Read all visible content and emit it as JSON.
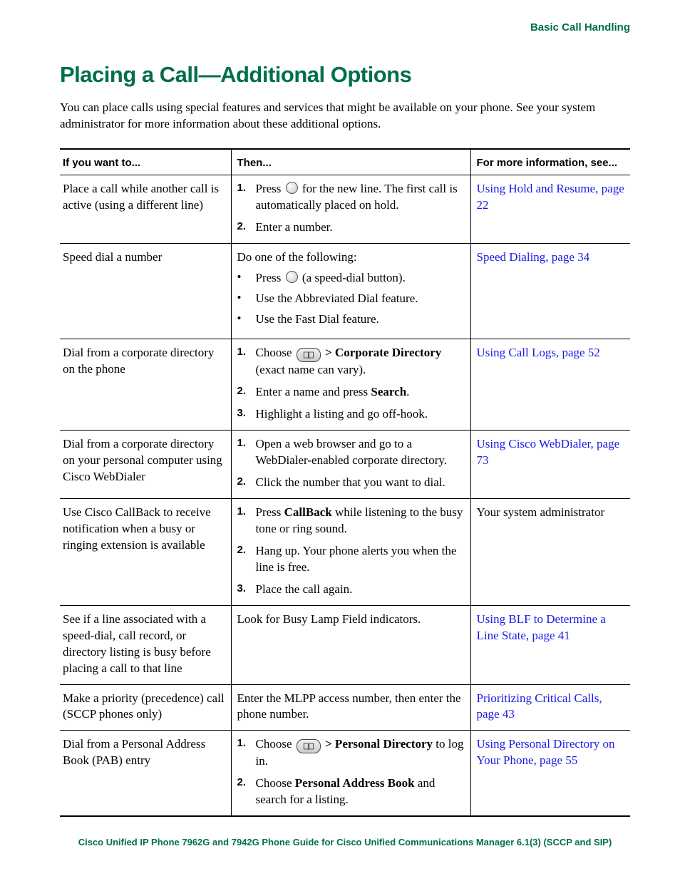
{
  "colors": {
    "accent": "#006f4a",
    "link": "#1a1ae6",
    "text": "#000000",
    "background": "#ffffff",
    "rule": "#000000"
  },
  "typography": {
    "body_font": "Times New Roman",
    "heading_font": "Arial",
    "body_size_pt": 12,
    "h1_size_pt": 22,
    "th_size_pt": 11
  },
  "header": {
    "section": "Basic Call Handling"
  },
  "title": "Placing a Call—Additional Options",
  "intro": "You can place calls using special features and services that might be available on your phone. See your system administrator for more information about these additional options.",
  "table": {
    "type": "table",
    "columns": [
      "If you want to...",
      "Then...",
      "For more information, see..."
    ],
    "col_widths_pct": [
      30,
      42,
      28
    ],
    "rows": [
      {
        "want": "Place a call while another call is active (using a different line)",
        "then_lead": "",
        "then_steps": [
          {
            "pre": "Press ",
            "icon": "line-button",
            "post": " for the new line. The first call is automatically placed on hold."
          },
          {
            "text": "Enter a number."
          }
        ],
        "more_link": "Using Hold and Resume, page 22"
      },
      {
        "want": "Speed dial a number",
        "then_lead": "Do one of the following:",
        "then_bullets": [
          {
            "pre": "Press ",
            "icon": "line-button",
            "post": " (a speed-dial button)."
          },
          {
            "text": "Use the Abbreviated Dial feature."
          },
          {
            "text": "Use the Fast Dial feature."
          }
        ],
        "more_link": "Speed Dialing, page 34"
      },
      {
        "want": "Dial from a corporate directory on the phone",
        "then_steps": [
          {
            "pre": "Choose ",
            "icon": "dir-button",
            "bold_post": " > Corporate Directory",
            "post": " (exact name can vary)."
          },
          {
            "pre": "Enter a name and press ",
            "bold": "Search",
            "post": "."
          },
          {
            "text": "Highlight a listing and go off-hook."
          }
        ],
        "more_link": "Using Call Logs, page 52"
      },
      {
        "want": "Dial from a corporate directory on your personal computer using Cisco WebDialer",
        "then_steps": [
          {
            "text": "Open a web browser and go to a WebDialer-enabled corporate directory."
          },
          {
            "text": "Click the number that you want to dial."
          }
        ],
        "more_link": "Using Cisco WebDialer, page 73"
      },
      {
        "want": "Use Cisco CallBack to receive notification when a busy or ringing extension is available",
        "then_steps": [
          {
            "pre": "Press ",
            "bold": "CallBack",
            "post": " while listening to the busy tone or ring sound."
          },
          {
            "text": "Hang up. Your phone alerts you when the line is free."
          },
          {
            "text": "Place the call again."
          }
        ],
        "more_text": "Your system administrator"
      },
      {
        "want": "See if a line associated with a speed-dial, call record, or directory listing is busy before placing a call to that line",
        "then_text": "Look for Busy Lamp Field indicators.",
        "more_link": "Using BLF to Determine a Line State, page 41"
      },
      {
        "want": "Make a priority (precedence) call (SCCP phones only)",
        "then_text": "Enter the MLPP access number, then enter the phone number.",
        "more_link": "Prioritizing Critical Calls, page 43"
      },
      {
        "want": "Dial from a Personal Address Book (PAB) entry",
        "then_steps": [
          {
            "pre": "Choose ",
            "icon": "dir-button",
            "bold_post": " > Personal Directory",
            "post": " to log in."
          },
          {
            "pre": "Choose ",
            "bold": "Personal Address Book",
            "post": " and search for a listing."
          }
        ],
        "more_link": "Using Personal Directory on Your Phone, page 55"
      }
    ]
  },
  "footer": "Cisco Unified IP Phone 7962G and 7942G Phone Guide for Cisco Unified Communications Manager 6.1(3) (SCCP and SIP)"
}
